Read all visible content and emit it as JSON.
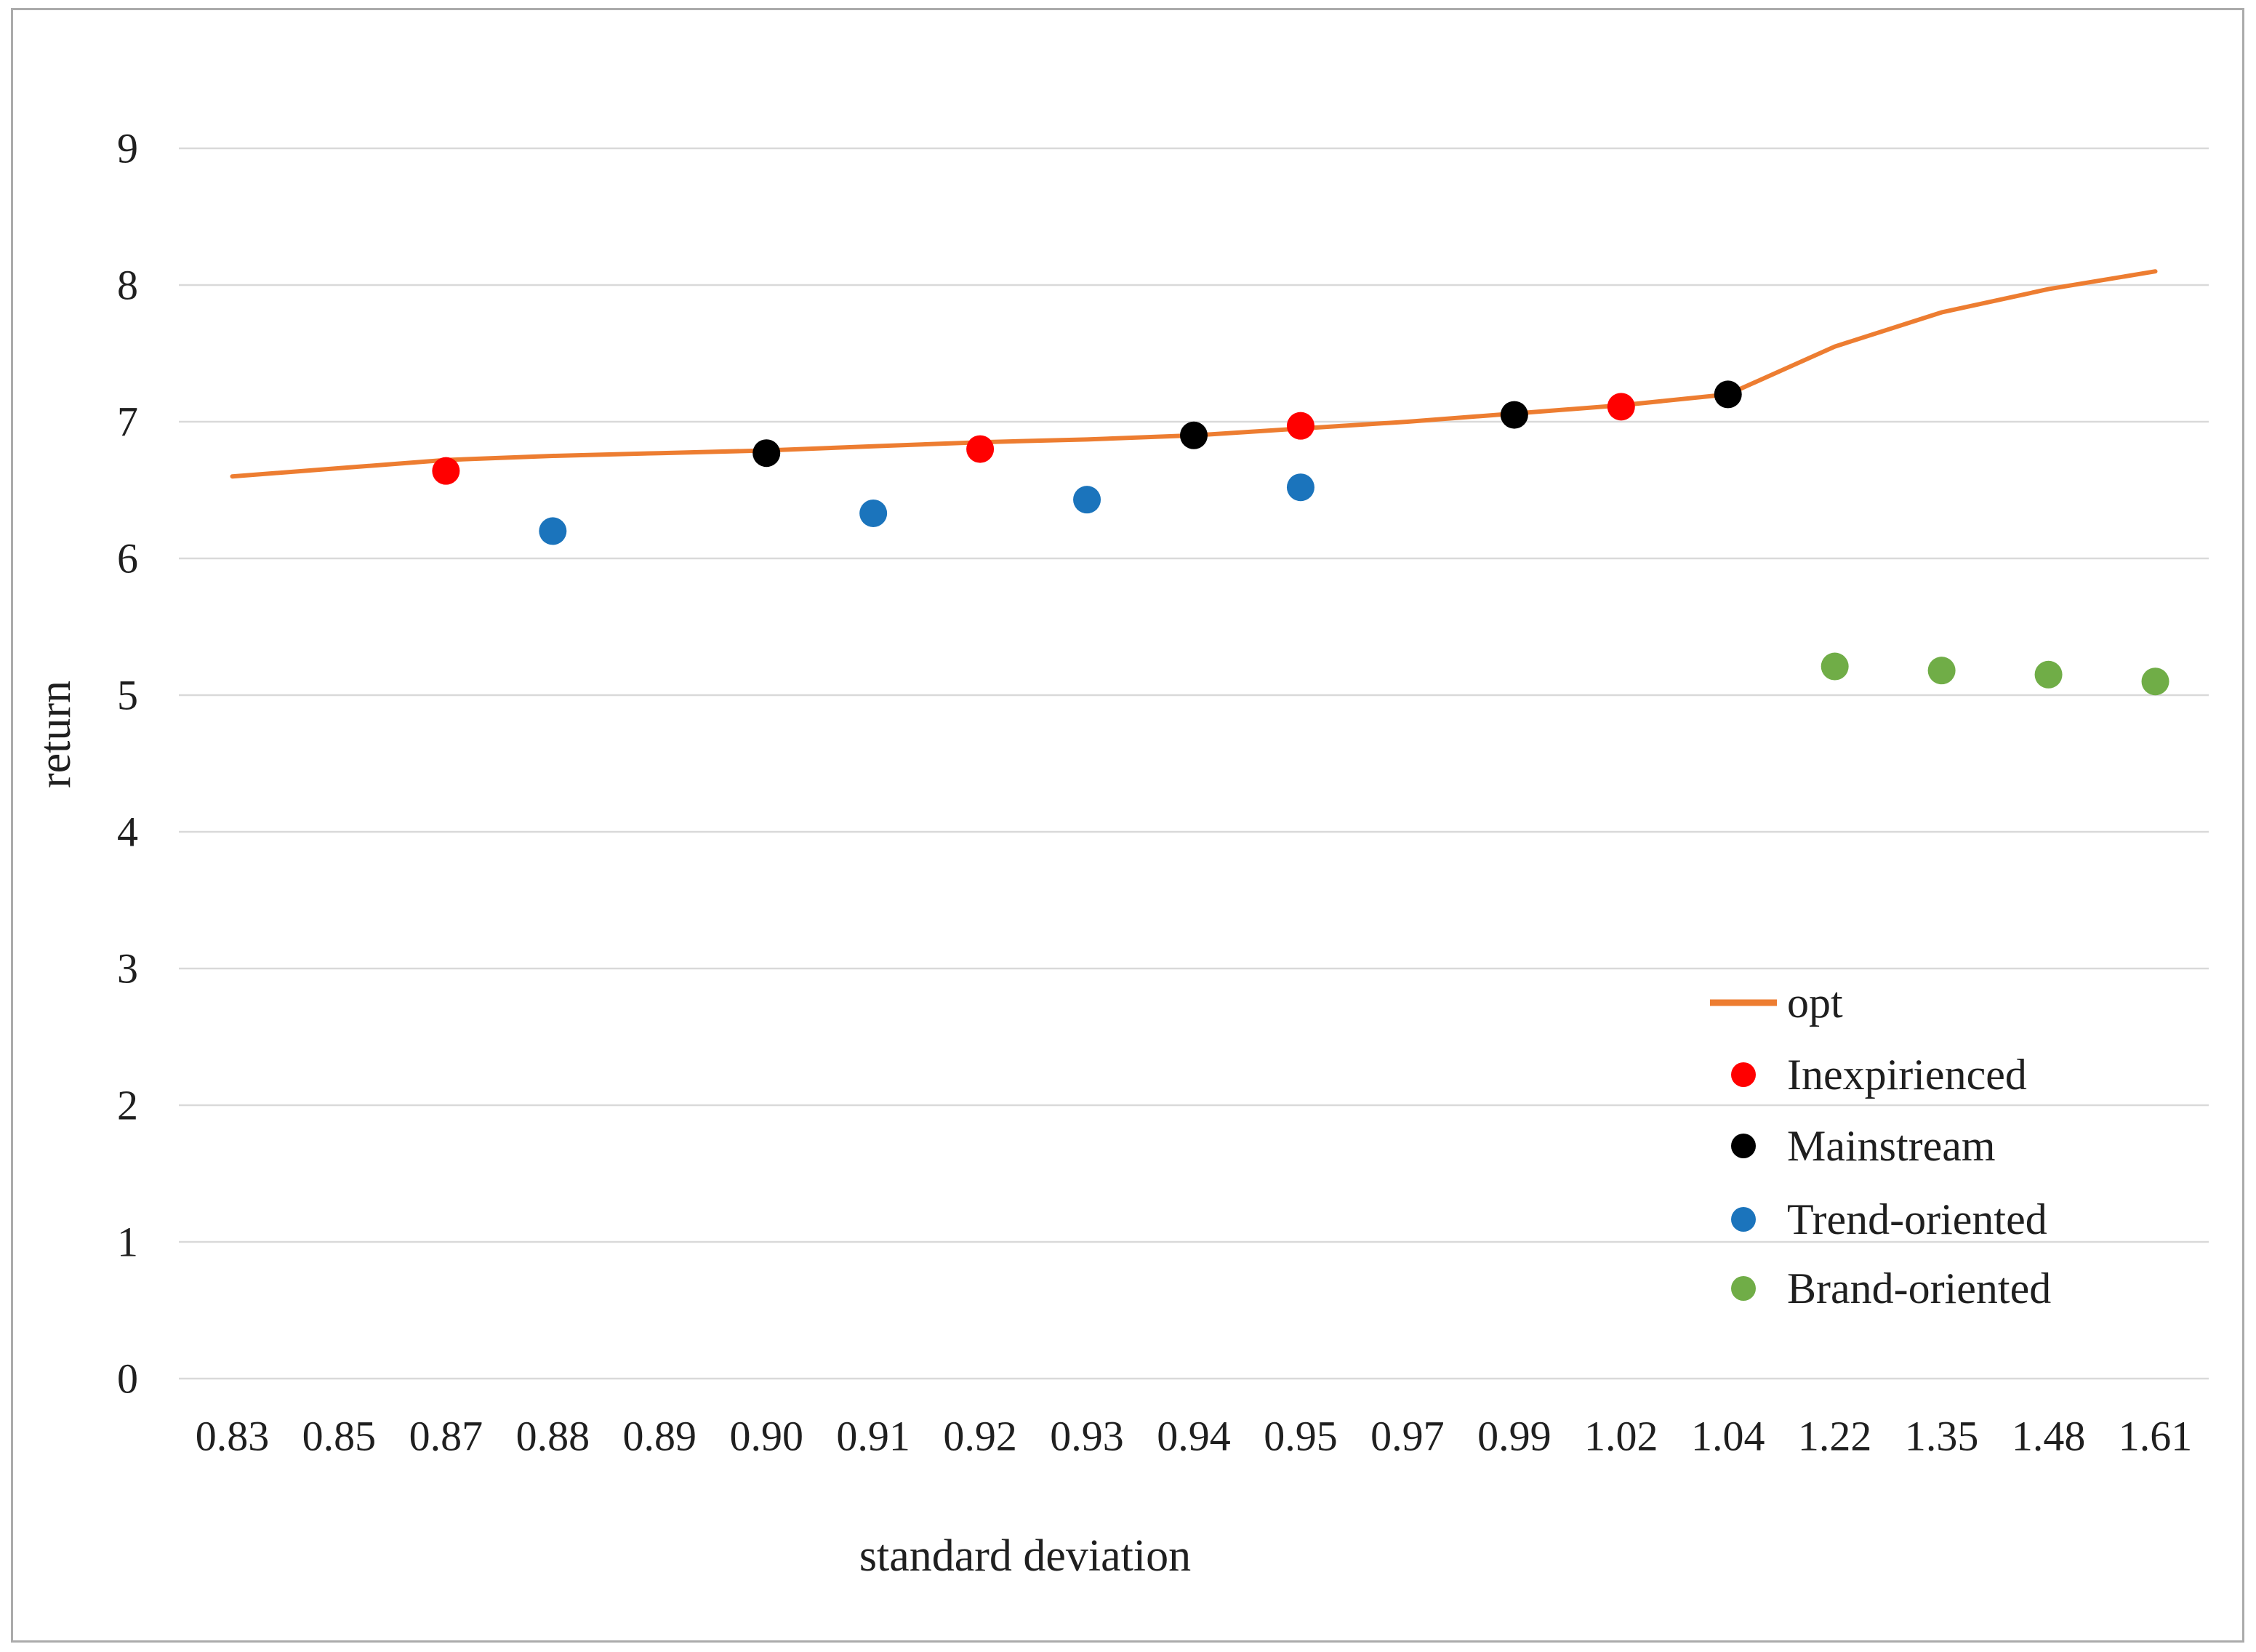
{
  "figure": {
    "background": "#FFFFFF",
    "border_color": "#ABABAB",
    "gridline_color": "#D9D9D9",
    "text_color": "#1F1F1F"
  },
  "chart_data": {
    "type": "line+scatter",
    "title": "",
    "xlabel": "standard deviation",
    "ylabel": "return",
    "categories": [
      "0.83",
      "0.85",
      "0.87",
      "0.88",
      "0.89",
      "0.90",
      "0.91",
      "0.92",
      "0.93",
      "0.94",
      "0.95",
      "0.97",
      "0.99",
      "1.02",
      "1.04",
      "1.22",
      "1.35",
      "1.48",
      "1.61"
    ],
    "y_axis": {
      "min": 0,
      "max": 9,
      "step": 1,
      "tick_labels": [
        "0",
        "1",
        "2",
        "3",
        "4",
        "5",
        "6",
        "7",
        "8",
        "9"
      ]
    },
    "grid": "horizontal",
    "legend_position": "inside-right",
    "series": [
      {
        "name": "opt",
        "type": "line",
        "color": "#ED7D31",
        "values": [
          6.6,
          6.66,
          6.72,
          6.75,
          6.77,
          6.79,
          6.82,
          6.85,
          6.87,
          6.9,
          6.95,
          7.0,
          7.06,
          7.12,
          7.2,
          7.55,
          7.8,
          7.97,
          8.1
        ]
      },
      {
        "name": "Inexpirienced",
        "type": "scatter",
        "color": "#FF0000",
        "points": [
          {
            "x": "0.87",
            "y": 6.64
          },
          {
            "x": "0.92",
            "y": 6.8
          },
          {
            "x": "0.95",
            "y": 6.97
          },
          {
            "x": "1.02",
            "y": 7.11
          }
        ]
      },
      {
        "name": "Mainstream",
        "type": "scatter",
        "color": "#000000",
        "points": [
          {
            "x": "0.90",
            "y": 6.77
          },
          {
            "x": "0.94",
            "y": 6.9
          },
          {
            "x": "0.99",
            "y": 7.05
          },
          {
            "x": "1.04",
            "y": 7.2
          }
        ]
      },
      {
        "name": "Trend-oriented",
        "type": "scatter",
        "color": "#1B74BC",
        "points": [
          {
            "x": "0.88",
            "y": 6.2
          },
          {
            "x": "0.91",
            "y": 6.33
          },
          {
            "x": "0.93",
            "y": 6.43
          },
          {
            "x": "0.95",
            "y": 6.52
          }
        ]
      },
      {
        "name": "Brand-oriented",
        "type": "scatter",
        "color": "#70AD47",
        "points": [
          {
            "x": "1.22",
            "y": 5.21
          },
          {
            "x": "1.35",
            "y": 5.18
          },
          {
            "x": "1.48",
            "y": 5.15
          },
          {
            "x": "1.61",
            "y": 5.1
          }
        ]
      }
    ]
  }
}
